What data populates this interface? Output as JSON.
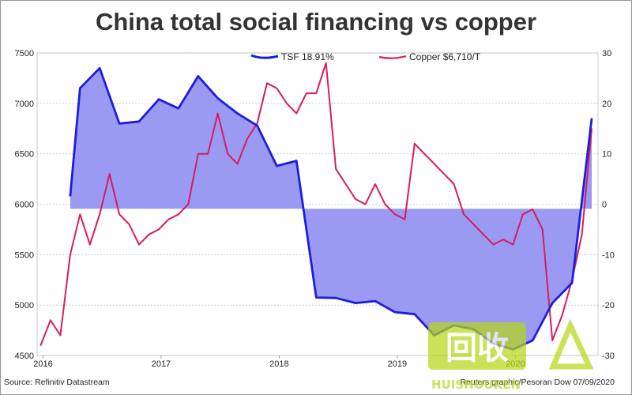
{
  "chart_data": {
    "type": "line",
    "title": "China total social financing vs copper",
    "x_ticks": [
      "2016",
      "2017",
      "2018",
      "2019",
      "2020"
    ],
    "ylim_left": [
      4500,
      7500
    ],
    "ylim_right": [
      -30,
      30
    ],
    "left_ticks": [
      4500,
      5000,
      5500,
      6000,
      6500,
      7000,
      7500
    ],
    "right_ticks": [
      -30,
      -20,
      -10,
      0,
      10,
      20,
      30
    ],
    "grid": true,
    "legend_position": "top",
    "colors": {
      "tsf_line": "#1d1de0",
      "tsf_fill": "#9a9af3",
      "copper": "#d81b60"
    },
    "series": [
      {
        "name": "TSF 18.91%",
        "axis": "left",
        "baseline": 5955,
        "x": [
          "2016-04",
          "2016-05",
          "2016-07",
          "2016-09",
          "2016-11",
          "2017-01",
          "2017-03",
          "2017-05",
          "2017-07",
          "2017-09",
          "2017-11",
          "2018-01",
          "2018-03",
          "2018-05",
          "2018-07",
          "2018-09",
          "2018-11",
          "2019-01",
          "2019-03",
          "2019-05",
          "2019-07",
          "2019-09",
          "2019-11",
          "2020-01",
          "2020-03",
          "2020-05",
          "2020-07",
          "2020-09"
        ],
        "values": [
          6080,
          7150,
          7350,
          6800,
          6820,
          7040,
          6950,
          7270,
          7050,
          6900,
          6780,
          6380,
          6430,
          5075,
          5070,
          5020,
          5040,
          4930,
          4910,
          4700,
          4800,
          4760,
          4620,
          4560,
          4650,
          5020,
          5220,
          6850
        ]
      },
      {
        "name": "Copper $6,710/T",
        "axis": "right",
        "x": [
          "2016-01",
          "2016-02",
          "2016-03",
          "2016-04",
          "2016-05",
          "2016-06",
          "2016-07",
          "2016-08",
          "2016-09",
          "2016-10",
          "2016-11",
          "2016-12",
          "2017-01",
          "2017-02",
          "2017-03",
          "2017-04",
          "2017-05",
          "2017-06",
          "2017-07",
          "2017-08",
          "2017-09",
          "2017-10",
          "2017-11",
          "2017-12",
          "2018-01",
          "2018-02",
          "2018-03",
          "2018-04",
          "2018-05",
          "2018-06",
          "2018-07",
          "2018-08",
          "2018-09",
          "2018-10",
          "2018-11",
          "2018-12",
          "2019-01",
          "2019-02",
          "2019-03",
          "2019-04",
          "2019-05",
          "2019-06",
          "2019-07",
          "2019-08",
          "2019-09",
          "2019-10",
          "2019-11",
          "2019-12",
          "2020-01",
          "2020-02",
          "2020-03",
          "2020-04",
          "2020-05",
          "2020-06",
          "2020-07",
          "2020-08",
          "2020-09"
        ],
        "values": [
          -28,
          -23,
          -26,
          -10,
          -2,
          -8,
          -2,
          6,
          -2,
          -4,
          -8,
          -6,
          -5,
          -3,
          -2,
          0,
          10,
          10,
          18,
          10,
          8,
          13,
          16,
          24,
          23,
          20,
          18,
          22,
          22,
          28,
          7,
          4,
          1,
          0,
          4,
          0,
          -2,
          -3,
          12,
          10,
          8,
          6,
          4,
          -2,
          -4,
          -6,
          -8,
          -7,
          -8,
          -2,
          -1,
          -5,
          -27,
          -22,
          -15,
          -6,
          15
        ]
      }
    ]
  },
  "legend": [
    {
      "label": "TSF 18.91%"
    },
    {
      "label": "Copper $6,710/T"
    }
  ],
  "footer": {
    "source": "Source: Refinitiv Datastream",
    "credit": "Reuters graphic/Pesoran Dow 07/09/2020"
  },
  "watermark": {
    "logo_text": "回收",
    "sub_text": "HUISHOUKEN",
    "color": "#b8d619"
  }
}
